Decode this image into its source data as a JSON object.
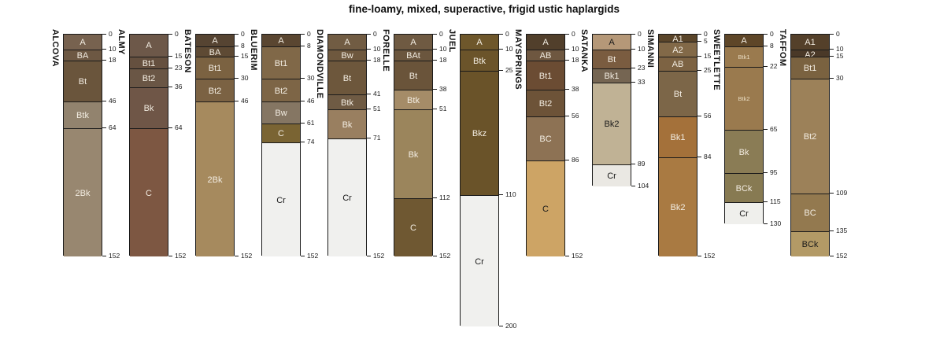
{
  "title": "fine-loamy, mixed, superactive, frigid ustic haplargids",
  "colors": {
    "background": "#ffffff",
    "outline": "#1a1a1a",
    "tick_text": "#1a1a1a",
    "label_light": "#f2ece1",
    "label_dark": "#1a1a1a",
    "label_muted": "#e9dcc2"
  },
  "chart_data": {
    "type": "bar",
    "subtype": "soil-profile-columns",
    "title": "fine-loamy, mixed, superactive, frigid ustic haplargids",
    "depth_unit": "cm",
    "ylim": [
      0,
      200
    ],
    "legend_position": "none",
    "grid": false,
    "profiles": [
      {
        "name": "ALCOVA",
        "max_depth": 152,
        "horizons": [
          {
            "label": "A",
            "top": 0,
            "bottom": 10,
            "color": "#77624f",
            "label_style": "light"
          },
          {
            "label": "BA",
            "top": 10,
            "bottom": 18,
            "color": "#6d5843",
            "label_style": "light"
          },
          {
            "label": "Bt",
            "top": 18,
            "bottom": 46,
            "color": "#6a553c",
            "label_style": "light"
          },
          {
            "label": "Btk",
            "top": 46,
            "bottom": 64,
            "color": "#92836e",
            "label_style": "light"
          },
          {
            "label": "2Bk",
            "top": 64,
            "bottom": 152,
            "color": "#988770",
            "label_style": "light"
          }
        ]
      },
      {
        "name": "ALMY",
        "max_depth": 152,
        "horizons": [
          {
            "label": "A",
            "top": 0,
            "bottom": 15,
            "color": "#6d5849",
            "label_style": "light"
          },
          {
            "label": "Bt1",
            "top": 15,
            "bottom": 23,
            "color": "#65503f",
            "label_style": "light"
          },
          {
            "label": "Bt2",
            "top": 23,
            "bottom": 36,
            "color": "#6a5645",
            "label_style": "light"
          },
          {
            "label": "Bk",
            "top": 36,
            "bottom": 64,
            "color": "#6f5647",
            "label_style": "light"
          },
          {
            "label": "C",
            "top": 64,
            "bottom": 152,
            "color": "#7d5742",
            "label_style": "light"
          }
        ]
      },
      {
        "name": "BATESON",
        "max_depth": 152,
        "horizons": [
          {
            "label": "A",
            "top": 0,
            "bottom": 8,
            "color": "#564432",
            "label_style": "light"
          },
          {
            "label": "BA",
            "top": 8,
            "bottom": 15,
            "color": "#5e4a34",
            "label_style": "light"
          },
          {
            "label": "Bt1",
            "top": 15,
            "bottom": 30,
            "color": "#7b6241",
            "label_style": "light"
          },
          {
            "label": "Bt2",
            "top": 30,
            "bottom": 46,
            "color": "#7b6243",
            "label_style": "light"
          },
          {
            "label": "2Bk",
            "top": 46,
            "bottom": 152,
            "color": "#a68a5e",
            "label_style": "light"
          }
        ]
      },
      {
        "name": "BLUERIM",
        "max_depth": 152,
        "horizons": [
          {
            "label": "A",
            "top": 0,
            "bottom": 8,
            "color": "#5a4631",
            "label_style": "light"
          },
          {
            "label": "Bt1",
            "top": 8,
            "bottom": 30,
            "color": "#806848",
            "label_style": "light"
          },
          {
            "label": "Bt2",
            "top": 30,
            "bottom": 46,
            "color": "#7d6546",
            "label_style": "light"
          },
          {
            "label": "Bw",
            "top": 46,
            "bottom": 61,
            "color": "#857663",
            "label_style": "light"
          },
          {
            "label": "C",
            "top": 61,
            "bottom": 74,
            "color": "#7a6433",
            "label_style": "light"
          },
          {
            "label": "Cr",
            "top": 74,
            "bottom": 152,
            "color": "#f0f0ee",
            "label_style": "dark"
          }
        ]
      },
      {
        "name": "DIAMONDVILLE",
        "max_depth": 152,
        "horizons": [
          {
            "label": "A",
            "top": 0,
            "bottom": 10,
            "color": "#715c43",
            "label_style": "light"
          },
          {
            "label": "Bw",
            "top": 10,
            "bottom": 18,
            "color": "#6e583e",
            "label_style": "light"
          },
          {
            "label": "Bt",
            "top": 18,
            "bottom": 41,
            "color": "#6d573c",
            "label_style": "light"
          },
          {
            "label": "Btk",
            "top": 41,
            "bottom": 51,
            "color": "#6f5b44",
            "label_style": "light"
          },
          {
            "label": "Bk",
            "top": 51,
            "bottom": 71,
            "color": "#997f60",
            "label_style": "light"
          },
          {
            "label": "Cr",
            "top": 71,
            "bottom": 152,
            "color": "#f0f0ee",
            "label_style": "dark"
          }
        ]
      },
      {
        "name": "FORELLE",
        "max_depth": 152,
        "horizons": [
          {
            "label": "A",
            "top": 0,
            "bottom": 10,
            "color": "#6f5a42",
            "label_style": "light"
          },
          {
            "label": "BAt",
            "top": 10,
            "bottom": 18,
            "color": "#6b563e",
            "label_style": "light"
          },
          {
            "label": "Bt",
            "top": 18,
            "bottom": 38,
            "color": "#6a543a",
            "label_style": "light"
          },
          {
            "label": "Btk",
            "top": 38,
            "bottom": 51,
            "color": "#a58c68",
            "label_style": "light"
          },
          {
            "label": "Bk",
            "top": 51,
            "bottom": 112,
            "color": "#9b855c",
            "label_style": "light"
          },
          {
            "label": "C",
            "top": 112,
            "bottom": 152,
            "color": "#6f5832",
            "label_style": "light"
          }
        ]
      },
      {
        "name": "JUEL",
        "max_depth": 200,
        "horizons": [
          {
            "label": "A",
            "top": 0,
            "bottom": 10,
            "color": "#6e572b",
            "label_style": "light"
          },
          {
            "label": "Btk",
            "top": 10,
            "bottom": 25,
            "color": "#6b542a",
            "label_style": "light"
          },
          {
            "label": "Bkz",
            "top": 25,
            "bottom": 110,
            "color": "#6a5329",
            "label_style": "light"
          },
          {
            "label": "Cr",
            "top": 110,
            "bottom": 200,
            "color": "#f0f0ee",
            "label_style": "dark"
          }
        ]
      },
      {
        "name": "MAYSPRINGS",
        "max_depth": 152,
        "horizons": [
          {
            "label": "A",
            "top": 0,
            "bottom": 10,
            "color": "#513f2b",
            "label_style": "light"
          },
          {
            "label": "AB",
            "top": 10,
            "bottom": 18,
            "color": "#6e5740",
            "label_style": "light"
          },
          {
            "label": "Bt1",
            "top": 18,
            "bottom": 38,
            "color": "#6b4c33",
            "label_style": "light"
          },
          {
            "label": "Bt2",
            "top": 38,
            "bottom": 56,
            "color": "#6d5338",
            "label_style": "light"
          },
          {
            "label": "BC",
            "top": 56,
            "bottom": 86,
            "color": "#8d7254",
            "label_style": "light"
          },
          {
            "label": "C",
            "top": 86,
            "bottom": 152,
            "color": "#cda465",
            "label_style": "dark"
          }
        ]
      },
      {
        "name": "SATANKA",
        "max_depth": 104,
        "horizons": [
          {
            "label": "A",
            "top": 0,
            "bottom": 10,
            "color": "#b59878",
            "label_style": "dark"
          },
          {
            "label": "Bt",
            "top": 10,
            "bottom": 23,
            "color": "#7a5c40",
            "label_style": "light"
          },
          {
            "label": "Bk1",
            "top": 23,
            "bottom": 33,
            "color": "#756552",
            "label_style": "light"
          },
          {
            "label": "Bk2",
            "top": 33,
            "bottom": 89,
            "color": "#c0b295",
            "label_style": "dark"
          },
          {
            "label": "Cr",
            "top": 89,
            "bottom": 104,
            "color": "#eae8e3",
            "label_style": "dark"
          }
        ]
      },
      {
        "name": "SIMANNI",
        "max_depth": 152,
        "horizons": [
          {
            "label": "A1",
            "top": 0,
            "bottom": 5,
            "color": "#5a452a",
            "label_style": "light"
          },
          {
            "label": "A2",
            "top": 5,
            "bottom": 15,
            "color": "#826948",
            "label_style": "light"
          },
          {
            "label": "AB",
            "top": 15,
            "bottom": 25,
            "color": "#7d6343",
            "label_style": "light"
          },
          {
            "label": "Bt",
            "top": 25,
            "bottom": 56,
            "color": "#7c6648",
            "label_style": "light"
          },
          {
            "label": "Bk1",
            "top": 56,
            "bottom": 84,
            "color": "#a4713a",
            "label_style": "light"
          },
          {
            "label": "Bk2",
            "top": 84,
            "bottom": 152,
            "color": "#a97a42",
            "label_style": "light"
          }
        ]
      },
      {
        "name": "SWEETLETTE",
        "max_depth": 130,
        "horizons": [
          {
            "label": "A",
            "top": 0,
            "bottom": 8,
            "color": "#5e4628",
            "label_style": "light"
          },
          {
            "label": "Btk1",
            "top": 8,
            "bottom": 22,
            "color": "#9a7a4e",
            "label_style": "muted",
            "small": true
          },
          {
            "label": "Btk2",
            "top": 22,
            "bottom": 65,
            "color": "#9a7a4e",
            "label_style": "muted",
            "small": true
          },
          {
            "label": "Bk",
            "top": 65,
            "bottom": 95,
            "color": "#8a7c55",
            "label_style": "light"
          },
          {
            "label": "BCk",
            "top": 95,
            "bottom": 115,
            "color": "#877a52",
            "label_style": "light"
          },
          {
            "label": "Cr",
            "top": 115,
            "bottom": 130,
            "color": "#efefec",
            "label_style": "dark"
          }
        ]
      },
      {
        "name": "TAFFOM",
        "max_depth": 152,
        "horizons": [
          {
            "label": "A1",
            "top": 0,
            "bottom": 10,
            "color": "#54402a",
            "label_style": "light"
          },
          {
            "label": "A2",
            "top": 10,
            "bottom": 15,
            "color": "#4a3928",
            "label_style": "light"
          },
          {
            "label": "Bt1",
            "top": 15,
            "bottom": 30,
            "color": "#7a6240",
            "label_style": "light"
          },
          {
            "label": "Bt2",
            "top": 30,
            "bottom": 109,
            "color": "#9c8159",
            "label_style": "light"
          },
          {
            "label": "BC",
            "top": 109,
            "bottom": 135,
            "color": "#93794f",
            "label_style": "light"
          },
          {
            "label": "BCk",
            "top": 135,
            "bottom": 152,
            "color": "#b39a66",
            "label_style": "dark"
          }
        ]
      }
    ]
  }
}
